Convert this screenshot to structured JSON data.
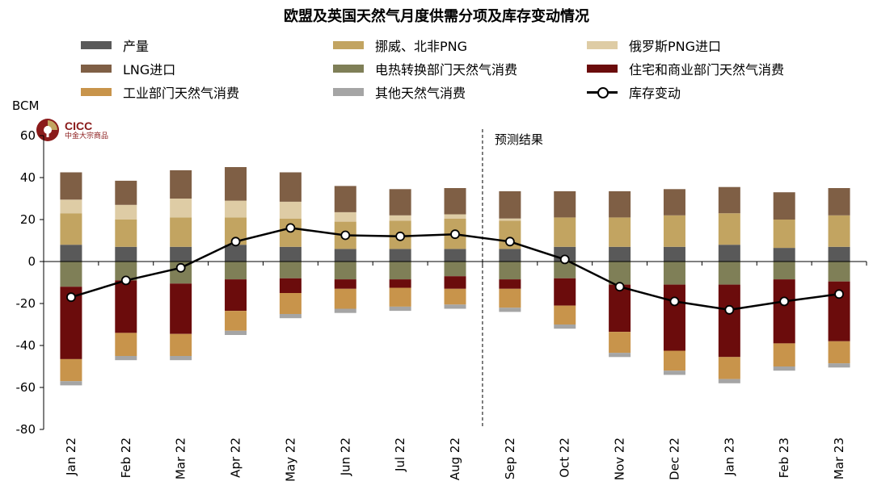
{
  "chart_data": {
    "type": "bar",
    "title": "欧盟及英国天然气月度供需分项及库存变动情况",
    "ylabel": "BCM",
    "ylim": [
      -80,
      60
    ],
    "yticks": [
      -80,
      -60,
      -40,
      -20,
      0,
      20,
      40,
      60
    ],
    "categories": [
      "Jan 22",
      "Feb 22",
      "Mar 22",
      "Apr 22",
      "May 22",
      "Jun 22",
      "Jul 22",
      "Aug 22",
      "Sep 22",
      "Oct 22",
      "Nov 22",
      "Dec 22",
      "Jan 23",
      "Feb 23",
      "Mar 23"
    ],
    "forecast_label": "预测结果",
    "forecast_start_index": 8,
    "stack_positive": [
      "产量",
      "挪威、北非PNG",
      "俄罗斯PNG进口",
      "LNG进口"
    ],
    "stack_negative": [
      "电热转换部门天然气消费",
      "住宅和商业部门天然气消费",
      "工业部门天然气消费",
      "其他天然气消费"
    ],
    "series": [
      {
        "name": "产量",
        "color": "#595959",
        "values": [
          8,
          7,
          7,
          8,
          7,
          6,
          6,
          6,
          6,
          7,
          7,
          7,
          8,
          6.5,
          7
        ]
      },
      {
        "name": "挪威、北非PNG",
        "color": "#c2a461",
        "values": [
          15,
          13,
          14,
          13,
          13.5,
          13,
          13.5,
          14.5,
          13.5,
          14,
          14,
          15,
          15,
          13.5,
          15
        ]
      },
      {
        "name": "俄罗斯PNG进口",
        "color": "#decca5",
        "values": [
          6.5,
          7,
          9,
          8,
          8,
          4.5,
          2.5,
          2,
          1,
          0,
          0,
          0,
          0,
          0,
          0
        ]
      },
      {
        "name": "LNG进口",
        "color": "#7f5f45",
        "values": [
          13,
          11.5,
          13.5,
          16,
          14,
          12.5,
          12.5,
          12.5,
          13,
          12.5,
          12.5,
          12.5,
          12.5,
          13,
          13
        ]
      },
      {
        "name": "电热转换部门天然气消费",
        "color": "#7f7f57",
        "values": [
          -12,
          -9,
          -10.5,
          -8.5,
          -8,
          -8.5,
          -8.5,
          -7,
          -8.5,
          -8,
          -11,
          -11,
          -11,
          -8.5,
          -9.5
        ]
      },
      {
        "name": "住宅和商业部门天然气消费",
        "color": "#6b0c0c",
        "values": [
          -34.5,
          -25,
          -24,
          -15,
          -7,
          -4.5,
          -4,
          -6,
          -4.5,
          -13,
          -22.5,
          -31.5,
          -34.5,
          -30.5,
          -28.5
        ]
      },
      {
        "name": "工业部门天然气消费",
        "color": "#c8944b",
        "values": [
          -10.5,
          -11,
          -10.5,
          -9.5,
          -10,
          -9.5,
          -9,
          -7.5,
          -9,
          -9,
          -10,
          -9.5,
          -10.5,
          -11,
          -10.5
        ]
      },
      {
        "name": "其他天然气消费",
        "color": "#a5a5a5",
        "values": [
          -2,
          -2,
          -2,
          -2,
          -2,
          -2,
          -2,
          -2,
          -2,
          -2,
          -2,
          -2,
          -2,
          -2,
          -2
        ]
      }
    ],
    "line": {
      "name": "库存变动",
      "color": "#000000",
      "values": [
        -17,
        -9,
        -3,
        9.5,
        16,
        12.5,
        12,
        13,
        9.5,
        1,
        -12,
        -19,
        -23,
        -19,
        -15.5
      ]
    },
    "legend_placement": "top",
    "grid": false
  },
  "legend": [
    {
      "label": "产量",
      "color": "#595959",
      "type": "bar"
    },
    {
      "label": "挪威、北非PNG",
      "color": "#c2a461",
      "type": "bar"
    },
    {
      "label": "俄罗斯PNG进口",
      "color": "#decca5",
      "type": "bar"
    },
    {
      "label": "LNG进口",
      "color": "#7f5f45",
      "type": "bar"
    },
    {
      "label": "电热转换部门天然气消费",
      "color": "#7f7f57",
      "type": "bar"
    },
    {
      "label": "住宅和商业部门天然气消费",
      "color": "#6b0c0c",
      "type": "bar"
    },
    {
      "label": "工业部门天然气消费",
      "color": "#c8944b",
      "type": "bar"
    },
    {
      "label": "其他天然气消费",
      "color": "#a5a5a5",
      "type": "bar"
    },
    {
      "label": "库存变动",
      "color": "#000000",
      "type": "line"
    }
  ],
  "logo": {
    "name": "CICC",
    "subtitle": "中金大宗商品",
    "color": "#8a1a1a"
  }
}
